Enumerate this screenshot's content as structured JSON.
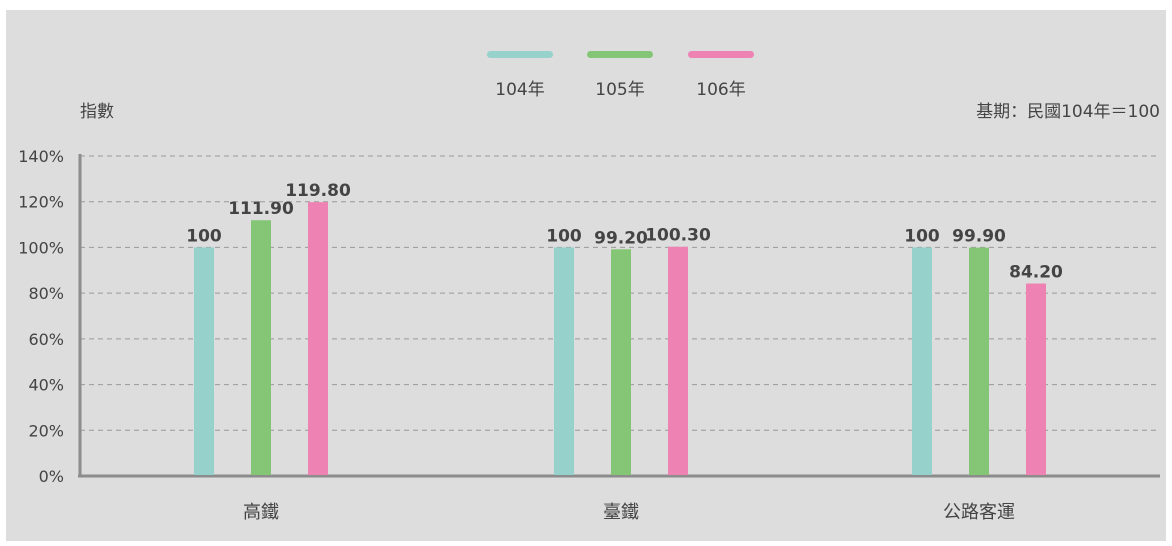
{
  "chart_data": {
    "type": "bar",
    "ylabel": "指數",
    "note": "基期：民國104年＝100",
    "categories": [
      "高鐵",
      "臺鐵",
      "公路客運"
    ],
    "series": [
      {
        "name": "104年",
        "color": "#96d1cc",
        "values": [
          100,
          100,
          100
        ],
        "labels": [
          "100",
          "100",
          "100"
        ]
      },
      {
        "name": "105年",
        "color": "#85c676",
        "values": [
          111.9,
          99.2,
          99.9
        ],
        "labels": [
          "111.90",
          "99.20",
          "99.90"
        ]
      },
      {
        "name": "106年",
        "color": "#ee82b3",
        "values": [
          119.8,
          100.3,
          84.2
        ],
        "labels": [
          "119.80",
          "100.30",
          "84.20"
        ]
      }
    ],
    "yticks": [
      "0%",
      "20%",
      "40%",
      "60%",
      "80%",
      "100%",
      "120%",
      "140%"
    ],
    "ylim": [
      0,
      140
    ],
    "grid": true,
    "legend_position": "top-center"
  }
}
